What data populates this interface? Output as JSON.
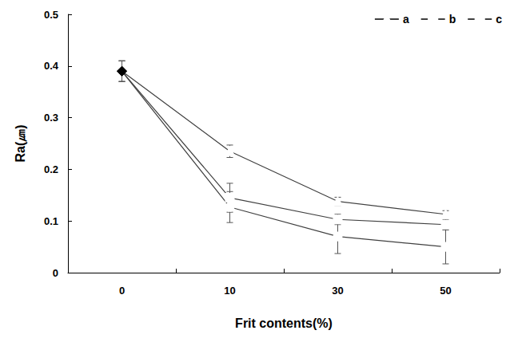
{
  "chart_data": {
    "type": "line",
    "x_label": "Frit contents(%)",
    "y_label": "Ra(㎛)",
    "categories": [
      "0",
      "10",
      "30",
      "50"
    ],
    "ylim": [
      0,
      0.5
    ],
    "yticks": [
      0,
      0.1,
      0.2,
      0.3,
      0.4,
      0.5
    ],
    "grid": false,
    "legend": "upper right",
    "series": [
      {
        "name": "a",
        "color": "#404040",
        "marker": "triangle",
        "values": [
          0.39,
          0.235,
          0.138,
          0.113
        ],
        "errors": [
          0.02,
          0.012,
          0.008,
          0.007
        ]
      },
      {
        "name": "b",
        "color": "#404040",
        "marker": "square",
        "values": [
          0.39,
          0.145,
          0.103,
          0.093
        ],
        "errors": [
          0.02,
          0.028,
          0.01,
          0.01
        ]
      },
      {
        "name": "c",
        "color": "#404040",
        "marker": "circle",
        "values": [
          0.39,
          0.127,
          0.07,
          0.05
        ],
        "errors": [
          0.02,
          0.03,
          0.033,
          0.033
        ]
      }
    ]
  }
}
